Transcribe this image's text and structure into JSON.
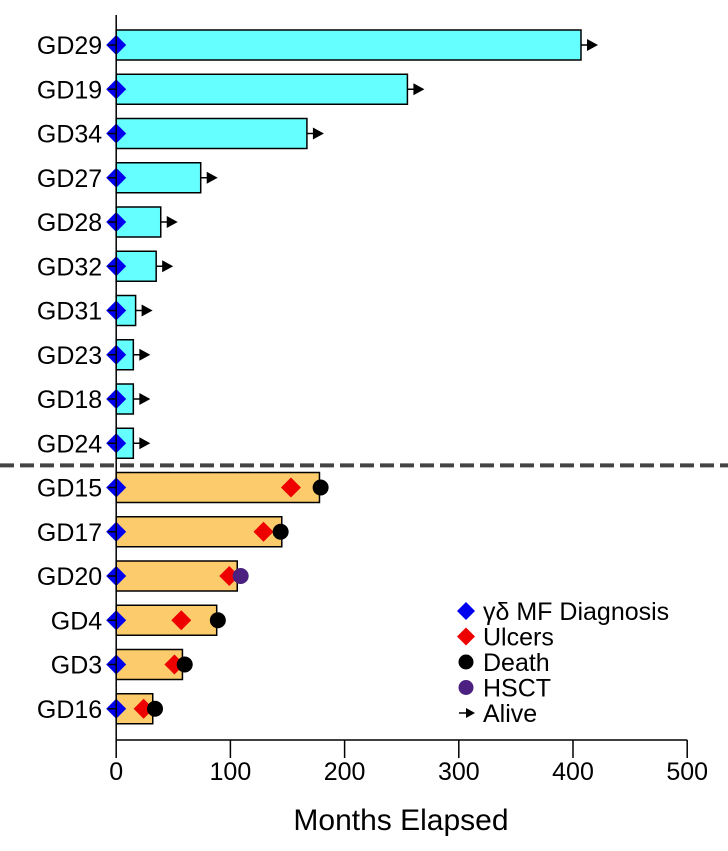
{
  "chart_data": {
    "type": "bar",
    "orientation": "horizontal",
    "title": "",
    "xlabel": "Months Elapsed",
    "ylabel": "",
    "xlim": [
      0,
      500
    ],
    "xticks": [
      0,
      100,
      200,
      300,
      400,
      500
    ],
    "grid": false,
    "legend_position": "bottom-right",
    "colors": {
      "alive_bar": "#66ffff",
      "deceased_bar": "#fccb6b",
      "diagnosis": "#0000ee",
      "ulcers": "#ee0000",
      "death": "#000000",
      "hsct": "#4b2080",
      "divider": "#444444"
    },
    "legend": [
      {
        "key": "diagnosis",
        "label": "γδ MF Diagnosis",
        "marker": "diamond"
      },
      {
        "key": "ulcers",
        "label": "Ulcers",
        "marker": "diamond"
      },
      {
        "key": "death",
        "label": "Death",
        "marker": "circle"
      },
      {
        "key": "hsct",
        "label": "HSCT",
        "marker": "circle"
      },
      {
        "key": "alive",
        "label": "Alive",
        "marker": "arrow"
      }
    ],
    "patients": [
      {
        "id": "GD29",
        "group": "alive",
        "months": 407,
        "diagnosis": 0,
        "alive": true
      },
      {
        "id": "GD19",
        "group": "alive",
        "months": 255,
        "diagnosis": 0,
        "alive": true
      },
      {
        "id": "GD34",
        "group": "alive",
        "months": 167,
        "diagnosis": 0,
        "alive": true
      },
      {
        "id": "GD27",
        "group": "alive",
        "months": 74,
        "diagnosis": 0,
        "alive": true
      },
      {
        "id": "GD28",
        "group": "alive",
        "months": 39,
        "diagnosis": 0,
        "alive": true
      },
      {
        "id": "GD32",
        "group": "alive",
        "months": 35,
        "diagnosis": 0,
        "alive": true
      },
      {
        "id": "GD31",
        "group": "alive",
        "months": 17,
        "diagnosis": 0,
        "alive": true
      },
      {
        "id": "GD23",
        "group": "alive",
        "months": 15,
        "diagnosis": 0,
        "alive": true
      },
      {
        "id": "GD18",
        "group": "alive",
        "months": 15,
        "diagnosis": 0,
        "alive": true
      },
      {
        "id": "GD24",
        "group": "alive",
        "months": 15,
        "diagnosis": 0,
        "alive": true
      },
      {
        "id": "GD15",
        "group": "deceased",
        "months": 178,
        "diagnosis": 0,
        "ulcers": 153,
        "death": 179
      },
      {
        "id": "GD17",
        "group": "deceased",
        "months": 145,
        "diagnosis": 0,
        "ulcers": 129,
        "death": 144
      },
      {
        "id": "GD20",
        "group": "deceased",
        "months": 106,
        "diagnosis": 0,
        "ulcers": 99,
        "hsct": 109
      },
      {
        "id": "GD4",
        "group": "deceased",
        "months": 88,
        "diagnosis": 0,
        "ulcers": 57,
        "death": 89
      },
      {
        "id": "GD3",
        "group": "deceased",
        "months": 58,
        "diagnosis": 0,
        "ulcers": 51,
        "death": 60
      },
      {
        "id": "GD16",
        "group": "deceased",
        "months": 32,
        "diagnosis": 0,
        "ulcers": 24,
        "death": 34
      }
    ]
  }
}
